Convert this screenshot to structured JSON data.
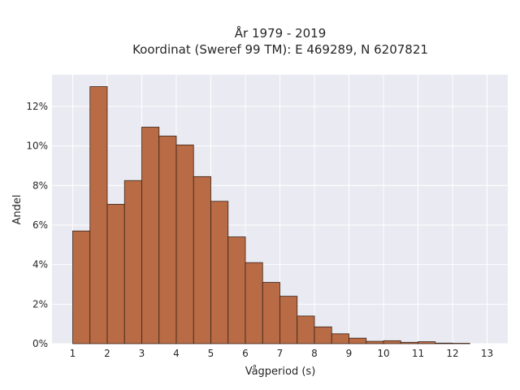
{
  "chart_data": {
    "type": "bar",
    "title_line1": "År 1979 - 2019",
    "title_line2": "Koordinat (Sweref 99 TM): E 469289, N 6207821",
    "xlabel": "Vågperiod (s)",
    "ylabel": "Andel",
    "xlim": [
      0.4,
      13.6
    ],
    "ylim": [
      0,
      13.6
    ],
    "x_ticks": [
      1,
      2,
      3,
      4,
      5,
      6,
      7,
      8,
      9,
      10,
      11,
      12,
      13
    ],
    "y_ticks": [
      0,
      2,
      4,
      6,
      8,
      10,
      12
    ],
    "y_tick_labels": [
      "0%",
      "2%",
      "4%",
      "6%",
      "8%",
      "10%",
      "12%"
    ],
    "bin_width": 0.5,
    "bins": [
      {
        "x0": 1.0,
        "x1": 1.5,
        "value": 5.7
      },
      {
        "x0": 1.5,
        "x1": 2.0,
        "value": 13.0
      },
      {
        "x0": 2.0,
        "x1": 2.5,
        "value": 7.05
      },
      {
        "x0": 2.5,
        "x1": 3.0,
        "value": 8.25
      },
      {
        "x0": 3.0,
        "x1": 3.5,
        "value": 10.95
      },
      {
        "x0": 3.5,
        "x1": 4.0,
        "value": 10.5
      },
      {
        "x0": 4.0,
        "x1": 4.5,
        "value": 10.05
      },
      {
        "x0": 4.5,
        "x1": 5.0,
        "value": 8.45
      },
      {
        "x0": 5.0,
        "x1": 5.5,
        "value": 7.2
      },
      {
        "x0": 5.5,
        "x1": 6.0,
        "value": 5.4
      },
      {
        "x0": 6.0,
        "x1": 6.5,
        "value": 4.1
      },
      {
        "x0": 6.5,
        "x1": 7.0,
        "value": 3.1
      },
      {
        "x0": 7.0,
        "x1": 7.5,
        "value": 2.4
      },
      {
        "x0": 7.5,
        "x1": 8.0,
        "value": 1.4
      },
      {
        "x0": 8.0,
        "x1": 8.5,
        "value": 0.85
      },
      {
        "x0": 8.5,
        "x1": 9.0,
        "value": 0.5
      },
      {
        "x0": 9.0,
        "x1": 9.5,
        "value": 0.28
      },
      {
        "x0": 9.5,
        "x1": 10.0,
        "value": 0.12
      },
      {
        "x0": 10.0,
        "x1": 10.5,
        "value": 0.15
      },
      {
        "x0": 10.5,
        "x1": 11.0,
        "value": 0.07
      },
      {
        "x0": 11.0,
        "x1": 11.5,
        "value": 0.1
      },
      {
        "x0": 11.5,
        "x1": 12.0,
        "value": 0.03
      },
      {
        "x0": 12.0,
        "x1": 12.5,
        "value": 0.02
      }
    ],
    "grid": true,
    "bar_color": "#b86b45",
    "bar_edge_color": "#3a2418",
    "plot_background": "#eaeaf2",
    "grid_color": "#ffffff"
  }
}
